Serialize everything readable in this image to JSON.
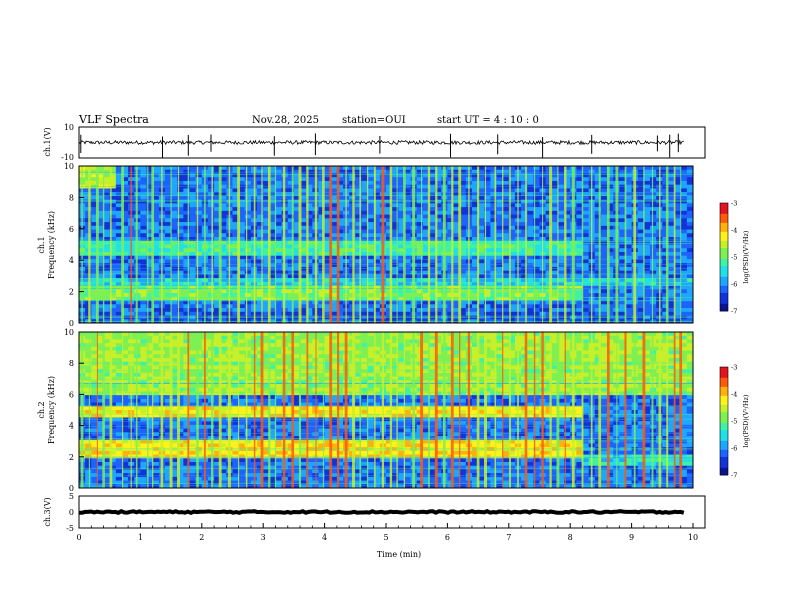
{
  "header": {
    "title": "VLF Spectra",
    "date": "Nov.28, 2025",
    "station": "station=OUI",
    "start_ut": "start UT =  4 : 10 : 0"
  },
  "colors": {
    "colormap": [
      "#0a1490",
      "#1233d8",
      "#1d64ff",
      "#1fa6ff",
      "#22e0e8",
      "#3ff2a4",
      "#7ff052",
      "#c8f02a",
      "#fff21a",
      "#ffb010",
      "#ff5a0a",
      "#e3141e",
      "#ffffff"
    ],
    "wave": "#000000",
    "grid": "#ffffff"
  },
  "chart_data": [
    {
      "id": "ch1-waveform",
      "type": "line",
      "ylabel": "ch.1(V)",
      "ylim": [
        -10,
        10
      ],
      "yticks": [
        "10",
        "-10"
      ],
      "xlim": [
        0,
        10
      ],
      "baseline": 0,
      "noise_amplitude": 1.2,
      "spike_times_min": [
        0.03,
        1.36,
        1.78,
        2.15,
        3.18,
        3.85,
        4.9,
        6.05,
        6.82,
        7.55,
        8.35,
        9.42,
        9.62,
        9.76
      ]
    },
    {
      "id": "ch1-spectrogram",
      "type": "heatmap",
      "ylabel": "ch.1 Frequency (kHz)",
      "ylim": [
        0,
        10
      ],
      "yticks": [
        "0",
        "2",
        "4",
        "6",
        "8",
        "10"
      ],
      "xlim": [
        0,
        10
      ],
      "colorbar": {
        "label": "log(PSD)(V²/Hz)",
        "range": [
          -7,
          -3
        ],
        "ticks": [
          "-3",
          "-4",
          "-5",
          "-6",
          "-7"
        ]
      },
      "bands": [
        {
          "fmin": 0.0,
          "fmax": 0.6,
          "t0": 0,
          "t1": 10,
          "log_psd": -6.3
        },
        {
          "fmin": 1.4,
          "fmax": 2.3,
          "t0": 0,
          "t1": 8.25,
          "log_psd": -4.9
        },
        {
          "fmin": 2.3,
          "fmax": 2.8,
          "t0": 0,
          "t1": 10,
          "log_psd": -5.6
        },
        {
          "fmin": 4.4,
          "fmax": 5.2,
          "t0": 0,
          "t1": 8.25,
          "log_psd": -5.2
        },
        {
          "fmin": 8.6,
          "fmax": 10.0,
          "t0": 0,
          "t1": 0.6,
          "log_psd": -4.5
        }
      ]
    },
    {
      "id": "ch2-spectrogram",
      "type": "heatmap",
      "ylabel": "ch.2 Frequency (kHz)",
      "ylim": [
        0,
        10
      ],
      "yticks": [
        "0",
        "2",
        "4",
        "6",
        "8",
        "10"
      ],
      "xlim": [
        0,
        10
      ],
      "colorbar": {
        "label": "log(PSD)(V²/Hz)",
        "range": [
          -7,
          -3
        ],
        "ticks": [
          "-3",
          "-4",
          "-5",
          "-6",
          "-7"
        ]
      },
      "bands": [
        {
          "fmin": 1.8,
          "fmax": 3.0,
          "t0": 0,
          "t1": 8.25,
          "log_psd": -4.1
        },
        {
          "fmin": 4.5,
          "fmax": 5.2,
          "t0": 0,
          "t1": 8.25,
          "log_psd": -4.2
        },
        {
          "fmin": 1.4,
          "fmax": 2.2,
          "t0": 8.25,
          "t1": 10,
          "log_psd": -5.4
        },
        {
          "fmin": 6.0,
          "fmax": 10.0,
          "t0": 0,
          "t1": 10,
          "log_psd": -4.7
        }
      ]
    },
    {
      "id": "ch3-waveform",
      "type": "line",
      "ylabel": "ch.3(V)",
      "ylim": [
        -5,
        5
      ],
      "yticks": [
        "5",
        "0",
        "-5"
      ],
      "xlim": [
        0,
        10
      ],
      "baseline": 0,
      "noise_amplitude": 0.25
    }
  ],
  "xaxis": {
    "label": "Time (min)",
    "ticks": [
      "0",
      "1",
      "2",
      "3",
      "4",
      "5",
      "6",
      "7",
      "8",
      "9",
      "10"
    ]
  },
  "sferic_times_min": [
    0.05,
    0.17,
    0.3,
    0.4,
    0.52,
    0.71,
    0.85,
    0.94,
    1.12,
    1.2,
    1.35,
    1.5,
    1.62,
    1.78,
    1.93,
    2.05,
    2.17,
    2.3,
    2.45,
    2.6,
    2.73,
    2.86,
    2.98,
    3.1,
    3.2,
    3.34,
    3.48,
    3.6,
    3.72,
    3.86,
    3.98,
    4.1,
    4.22,
    4.35,
    4.47,
    4.58,
    4.7,
    4.82,
    4.95,
    5.08,
    5.18,
    5.3,
    5.45,
    5.58,
    5.7,
    5.82,
    5.95,
    6.08,
    6.2,
    6.35,
    6.5,
    6.62,
    6.78,
    6.9,
    7.02,
    7.15,
    7.28,
    7.42,
    7.55,
    7.68,
    7.8,
    7.92,
    8.05,
    8.2,
    8.35,
    8.48,
    8.62,
    8.76,
    8.9,
    9.05,
    9.2,
    9.34,
    9.46,
    9.58,
    9.7,
    9.8
  ]
}
